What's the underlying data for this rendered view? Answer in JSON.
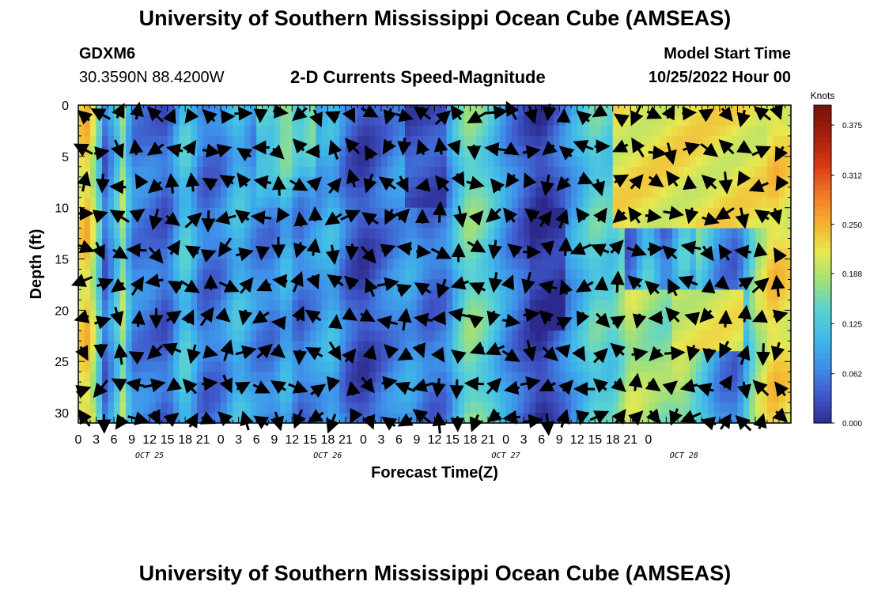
{
  "header": {
    "title": "University of Southern Mississippi Ocean Cube (AMSEAS)",
    "station": "GDXM6",
    "coords": "30.3590N  88.4200W",
    "subtitle": "2-D Currents Speed-Magnitude",
    "model_start_label": "Model Start Time",
    "model_start_value": "10/25/2022 Hour 00"
  },
  "footer": {
    "title": "University of Southern Mississippi Ocean Cube (AMSEAS)"
  },
  "chart_data": {
    "type": "heatmap",
    "title": "2-D Currents Speed-Magnitude",
    "xlabel": "Forecast Time(Z)",
    "ylabel": "Depth (ft)",
    "x_tick_labels": [
      "0",
      "3",
      "6",
      "9",
      "12",
      "15",
      "18",
      "21",
      "0",
      "3",
      "6",
      "9",
      "12",
      "15",
      "18",
      "21",
      "0",
      "3",
      "6",
      "9",
      "12",
      "15",
      "18",
      "21",
      "0",
      "3",
      "6",
      "9",
      "12",
      "15",
      "18",
      "21",
      "0"
    ],
    "date_labels": [
      {
        "label": "OCT 25",
        "hour": 12
      },
      {
        "label": "OCT 26",
        "hour": 42
      },
      {
        "label": "OCT 27",
        "hour": 72
      },
      {
        "label": "OCT 28",
        "hour": 102
      }
    ],
    "xlim_hours": [
      0,
      120
    ],
    "y_ticks": [
      0,
      5,
      10,
      15,
      20,
      25,
      30
    ],
    "ylim_ft": [
      0,
      31
    ],
    "y_inverted": true,
    "colorbar": {
      "unit": "Knots",
      "ticks": [
        "0.375",
        "0.312",
        "0.250",
        "0.188",
        "0.125",
        "0.062",
        "0.000"
      ],
      "range": [
        0,
        0.4
      ]
    },
    "colormap": [
      "#2b2a8c",
      "#3f56c8",
      "#3f8ee8",
      "#3fb8e8",
      "#5ad2d2",
      "#9fe07a",
      "#e8e850",
      "#f5b030",
      "#f07828",
      "#d83a14",
      "#a8200c",
      "#7a1408"
    ],
    "speed_profile_by_hour": [
      {
        "h": 0,
        "v": 0.22
      },
      {
        "h": 1.5,
        "v": 0.24
      },
      {
        "h": 3,
        "v": 0.18
      },
      {
        "h": 4.5,
        "v": 0.05
      },
      {
        "h": 6,
        "v": 0.1
      },
      {
        "h": 7.5,
        "v": 0.18
      },
      {
        "h": 9,
        "v": 0.07
      },
      {
        "h": 12,
        "v": 0.06
      },
      {
        "h": 15,
        "v": 0.04
      },
      {
        "h": 18,
        "v": 0.14
      },
      {
        "h": 21,
        "v": 0.05
      },
      {
        "h": 24,
        "v": 0.06
      },
      {
        "h": 27,
        "v": 0.12
      },
      {
        "h": 30,
        "v": 0.07
      },
      {
        "h": 33,
        "v": 0.06
      },
      {
        "h": 35,
        "v": 0.11
      },
      {
        "h": 37,
        "v": 0.05
      },
      {
        "h": 40,
        "v": 0.08
      },
      {
        "h": 43,
        "v": 0.11
      },
      {
        "h": 45,
        "v": 0.05
      },
      {
        "h": 48,
        "v": 0.02
      },
      {
        "h": 50,
        "v": 0.04
      },
      {
        "h": 53,
        "v": 0.07
      },
      {
        "h": 56,
        "v": 0.09
      },
      {
        "h": 59,
        "v": 0.05
      },
      {
        "h": 62,
        "v": 0.06
      },
      {
        "h": 64,
        "v": 0.13
      },
      {
        "h": 66,
        "v": 0.17
      },
      {
        "h": 69,
        "v": 0.14
      },
      {
        "h": 72,
        "v": 0.08
      },
      {
        "h": 75,
        "v": 0.04
      },
      {
        "h": 78,
        "v": 0.01
      },
      {
        "h": 81,
        "v": 0.05
      },
      {
        "h": 84,
        "v": 0.1
      },
      {
        "h": 87,
        "v": 0.15
      },
      {
        "h": 90,
        "v": 0.13
      },
      {
        "h": 93,
        "v": 0.2
      },
      {
        "h": 96,
        "v": 0.18
      },
      {
        "h": 99,
        "v": 0.17
      },
      {
        "h": 102,
        "v": 0.19
      },
      {
        "h": 105,
        "v": 0.14
      },
      {
        "h": 108,
        "v": 0.07
      },
      {
        "h": 111,
        "v": 0.05
      },
      {
        "h": 114,
        "v": 0.18
      },
      {
        "h": 117,
        "v": 0.24
      },
      {
        "h": 120,
        "v": 0.22
      }
    ],
    "note_arrows": "Black arrows indicate current direction at each grid point (every ~2 hours, every ~2 ft)."
  }
}
